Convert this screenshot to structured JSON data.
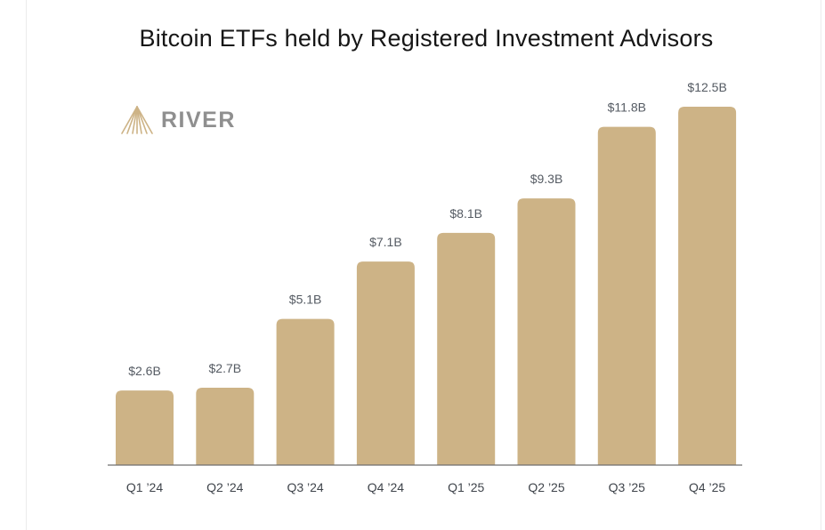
{
  "logo": {
    "text": "RIVER",
    "icon": "river-mountain-icon",
    "color": "#cdb386"
  },
  "chart_data": {
    "type": "bar",
    "title": "Bitcoin ETFs held by Registered Investment Advisors",
    "categories": [
      "Q1 ’24",
      "Q2 ’24",
      "Q3 ’24",
      "Q4 ’24",
      "Q1 ’25",
      "Q2 ’25",
      "Q3 ’25",
      "Q4 ’25"
    ],
    "values": [
      2.6,
      2.7,
      5.1,
      7.1,
      8.1,
      9.3,
      11.8,
      12.5
    ],
    "value_labels": [
      "$2.6B",
      "$2.7B",
      "$5.1B",
      "$7.1B",
      "$8.1B",
      "$9.3B",
      "$11.8B",
      "$12.5B"
    ],
    "unit": "USD billions",
    "xlabel": "",
    "ylabel": "",
    "ylim": [
      0,
      12.5
    ],
    "grid": false,
    "bar_color": "#cdb386"
  }
}
